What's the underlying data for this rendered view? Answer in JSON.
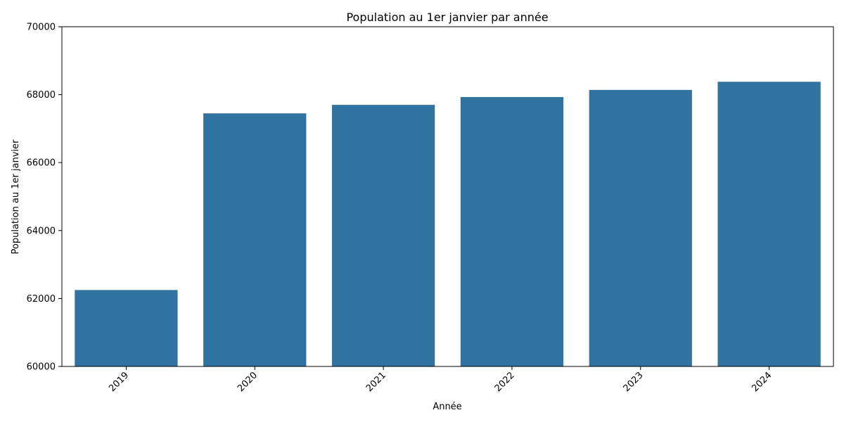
{
  "chart_data": {
    "type": "bar",
    "title": "Population au 1er janvier par année",
    "xlabel": "Année",
    "ylabel": "Population au 1er janvier",
    "categories": [
      "2019",
      "2020",
      "2021",
      "2022",
      "2023",
      "2024"
    ],
    "values": [
      62250,
      67450,
      67700,
      67930,
      68140,
      68380
    ],
    "ylim": [
      60000,
      70000
    ],
    "yticks": [
      60000,
      62000,
      64000,
      66000,
      68000,
      70000
    ],
    "grid": false,
    "legend": "none",
    "colors": {
      "bar": "#3274a1",
      "axis": "#000000"
    }
  }
}
